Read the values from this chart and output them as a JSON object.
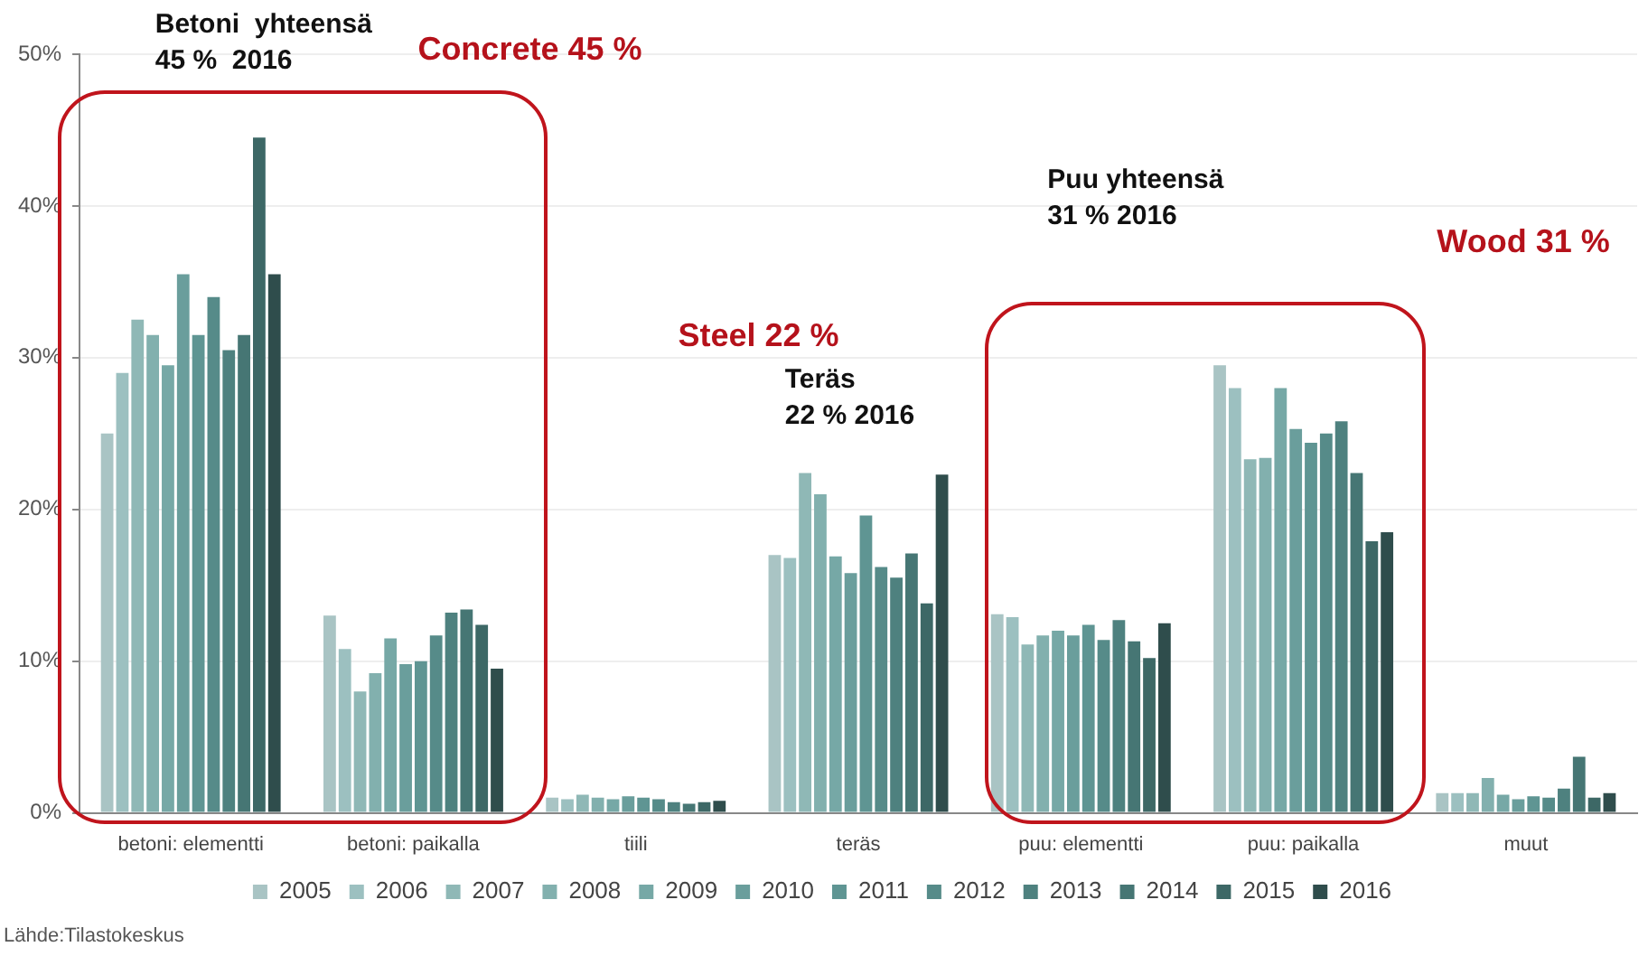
{
  "chart_data": {
    "type": "bar",
    "categories": [
      "betoni: elementti",
      "betoni: paikalla",
      "tiili",
      "teräs",
      "puu: elementti",
      "puu: paikalla",
      "muut"
    ],
    "series": [
      {
        "name": "2005",
        "color": "#a9c4c4",
        "values": [
          25,
          13,
          1,
          17,
          13.1,
          29.5,
          1.3
        ]
      },
      {
        "name": "2006",
        "color": "#9cc0c0",
        "values": [
          29,
          10.8,
          0.9,
          16.8,
          12.9,
          28,
          1.3
        ]
      },
      {
        "name": "2007",
        "color": "#8fb8b6",
        "values": [
          32.5,
          8,
          1.2,
          22.4,
          11.1,
          23.3,
          1.3
        ]
      },
      {
        "name": "2008",
        "color": "#82b0ae",
        "values": [
          31.5,
          9.2,
          1,
          21,
          11.7,
          23.4,
          2.3
        ]
      },
      {
        "name": "2009",
        "color": "#76a8a6",
        "values": [
          29.5,
          11.5,
          0.9,
          16.9,
          12,
          28,
          1.2
        ]
      },
      {
        "name": "2010",
        "color": "#6a9e9c",
        "values": [
          35.5,
          9.8,
          1.1,
          15.8,
          11.7,
          25.3,
          0.9
        ]
      },
      {
        "name": "2011",
        "color": "#5f9593",
        "values": [
          31.5,
          10,
          1,
          19.6,
          12.4,
          24.4,
          1.1
        ]
      },
      {
        "name": "2012",
        "color": "#568b89",
        "values": [
          34,
          11.7,
          0.9,
          16.2,
          11.4,
          25,
          1
        ]
      },
      {
        "name": "2013",
        "color": "#4e817f",
        "values": [
          30.5,
          13.2,
          0.7,
          15.5,
          12.7,
          25.8,
          1.6
        ]
      },
      {
        "name": "2014",
        "color": "#467674",
        "values": [
          31.5,
          13.4,
          0.6,
          17.1,
          11.3,
          22.4,
          3.7
        ]
      },
      {
        "name": "2015",
        "color": "#3d6866",
        "values": [
          44.5,
          12.4,
          0.7,
          13.8,
          10.2,
          17.9,
          1
        ]
      },
      {
        "name": "2016",
        "color": "#2f4d4c",
        "values": [
          35.5,
          9.5,
          0.8,
          22.3,
          12.5,
          18.5,
          1.3
        ]
      }
    ],
    "ylim": [
      0,
      50
    ],
    "yticks": [
      {
        "value": 0,
        "label": "0%"
      },
      {
        "value": 10,
        "label": "10%"
      },
      {
        "value": 20,
        "label": "20%"
      },
      {
        "value": 30,
        "label": "30%"
      },
      {
        "value": 40,
        "label": "40%"
      },
      {
        "value": 50,
        "label": "50%"
      }
    ],
    "grid": "y",
    "legend": "bottom",
    "annotations": [
      "Betoni  yhteensä\n45 %  2016",
      "Concrete 45 %",
      "Steel 22 %",
      "Teräs\n22 % 2016",
      "Puu yhteensä\n31 % 2016",
      "Wood 31 %",
      "Lähde:Tilastokeskus"
    ]
  }
}
